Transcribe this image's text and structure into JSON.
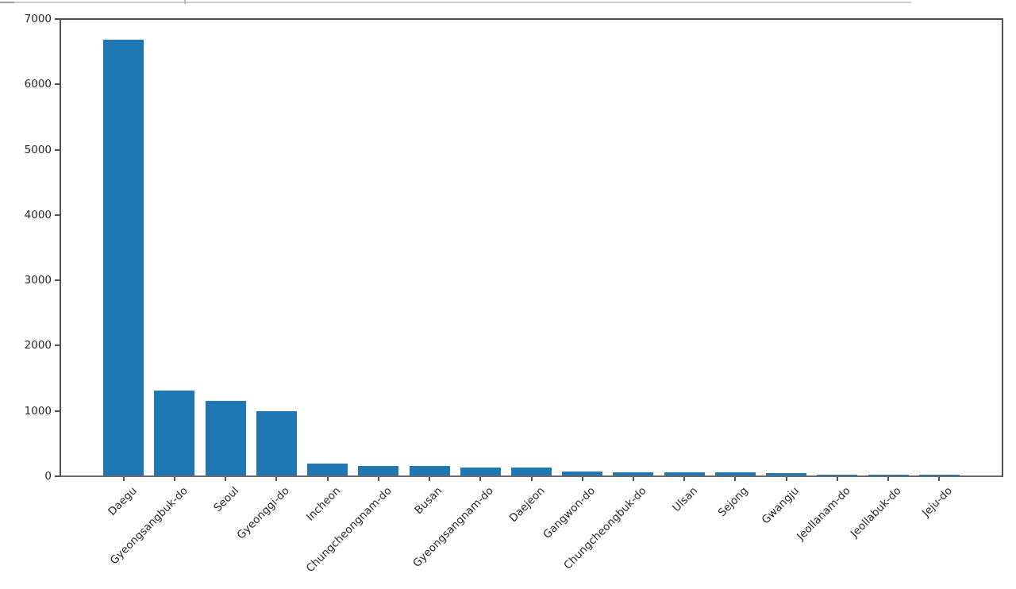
{
  "chart_data": {
    "type": "bar",
    "title": "",
    "xlabel": "",
    "ylabel": "",
    "categories": [
      "Daegu",
      "Gyeongsangbuk-do",
      "Seoul",
      "Gyeonggi-do",
      "Incheon",
      "Chungcheongnam-do",
      "Busan",
      "Gyeongsangnam-do",
      "Daejeon",
      "Gangwon-do",
      "Chungcheongbuk-do",
      "Ulsan",
      "Sejong",
      "Gwangju",
      "Jeollanam-do",
      "Jeollabuk-do",
      "Jeju-do"
    ],
    "values": [
      6680,
      1310,
      1160,
      995,
      200,
      158,
      156,
      132,
      130,
      68,
      65,
      62,
      55,
      50,
      30,
      27,
      22
    ],
    "ylim": [
      0,
      7000
    ],
    "yticks": [
      0,
      1000,
      2000,
      3000,
      4000,
      5000,
      6000,
      7000
    ],
    "x_tick_rotation_deg": 45,
    "grid": false,
    "legend": null,
    "bar_color": "#1f77b4",
    "sorted": "descending"
  }
}
